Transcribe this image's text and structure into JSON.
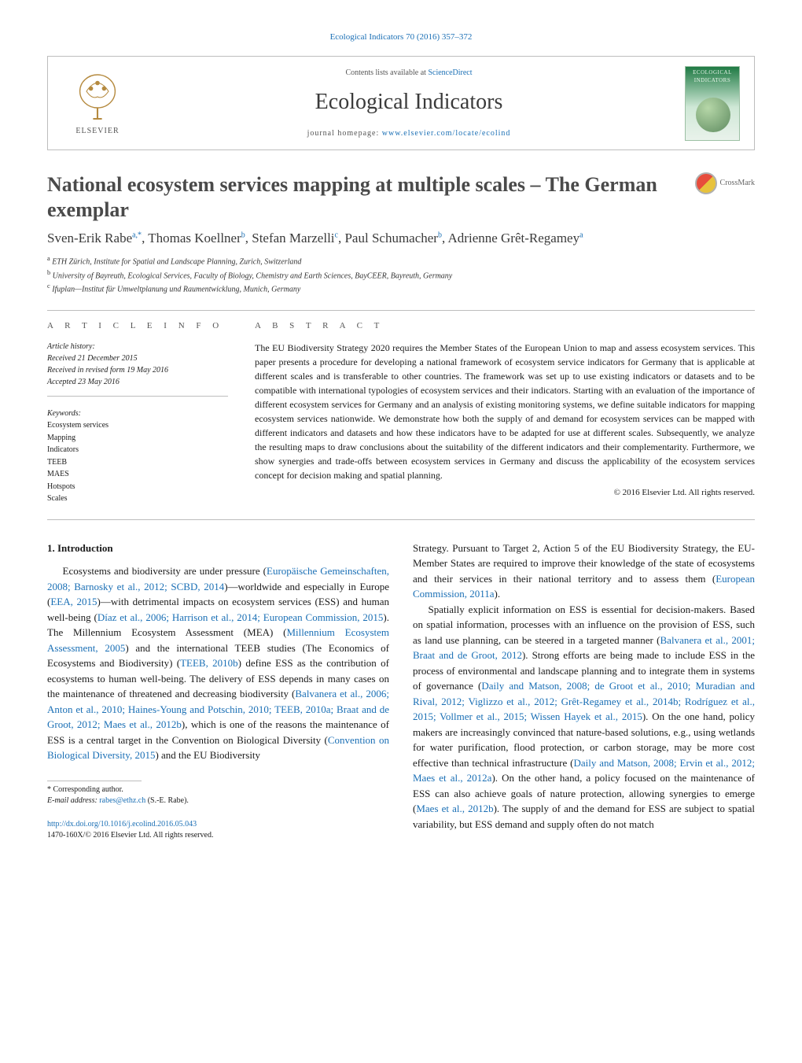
{
  "journal_ref": "Ecological Indicators 70 (2016) 357–372",
  "header": {
    "contents_prefix": "Contents lists available at ",
    "contents_link": "ScienceDirect",
    "journal_name": "Ecological Indicators",
    "homepage_prefix": "journal homepage: ",
    "homepage_link": "www.elsevier.com/locate/ecolind",
    "publisher_name": "ELSEVIER",
    "cover_label": "ECOLOGICAL INDICATORS"
  },
  "crossmark": "CrossMark",
  "title": "National ecosystem services mapping at multiple scales – The German exemplar",
  "authors_html": "Sven-Erik Rabe<sup>a,*</sup>, Thomas Koellner<sup>b</sup>, Stefan Marzelli<sup>c</sup>, Paul Schumacher<sup>b</sup>, Adrienne Grêt-Regamey<sup>a</sup>",
  "affiliations": [
    {
      "key": "a",
      "text": "ETH Zürich, Institute for Spatial and Landscape Planning, Zurich, Switzerland"
    },
    {
      "key": "b",
      "text": "University of Bayreuth, Ecological Services, Faculty of Biology, Chemistry and Earth Sciences, BayCEER, Bayreuth, Germany"
    },
    {
      "key": "c",
      "text": "Ifuplan—Institut für Umweltplanung und Raumentwicklung, Munich, Germany"
    }
  ],
  "article_info_heading": "A R T I C L E   I N F O",
  "abstract_heading": "A B S T R A C T",
  "history": {
    "label": "Article history:",
    "received": "Received 21 December 2015",
    "revised": "Received in revised form 19 May 2016",
    "accepted": "Accepted 23 May 2016"
  },
  "keywords": {
    "label": "Keywords:",
    "items": [
      "Ecosystem services",
      "Mapping",
      "Indicators",
      "TEEB",
      "MAES",
      "Hotspots",
      "Scales"
    ]
  },
  "abstract": "The EU Biodiversity Strategy 2020 requires the Member States of the European Union to map and assess ecosystem services. This paper presents a procedure for developing a national framework of ecosystem service indicators for Germany that is applicable at different scales and is transferable to other countries. The framework was set up to use existing indicators or datasets and to be compatible with international typologies of ecosystem services and their indicators. Starting with an evaluation of the importance of different ecosystem services for Germany and an analysis of existing monitoring systems, we define suitable indicators for mapping ecosystem services nationwide. We demonstrate how both the supply of and demand for ecosystem services can be mapped with different indicators and datasets and how these indicators have to be adapted for use at different scales. Subsequently, we analyze the resulting maps to draw conclusions about the suitability of the different indicators and their complementarity. Furthermore, we show synergies and trade-offs between ecosystem services in Germany and discuss the applicability of the ecosystem services concept for decision making and spatial planning.",
  "copyright": "© 2016 Elsevier Ltd. All rights reserved.",
  "intro_heading": "1.  Introduction",
  "col1": {
    "p1_parts": [
      "Ecosystems and biodiversity are under pressure (",
      "Europäische Gemeinschaften, 2008; Barnosky et al., 2012; SCBD, 2014",
      ")—worldwide and especially in Europe (",
      "EEA, 2015",
      ")—with detrimental impacts on ecosystem services (ESS) and human well-being (",
      "Díaz et al., 2006; Harrison et al., 2014; European Commission, 2015",
      "). The Millennium Ecosystem Assessment (MEA) (",
      "Millennium Ecosystem Assessment, 2005",
      ") and the international TEEB studies (The Economics of Ecosystems and Biodiversity) (",
      "TEEB, 2010b",
      ") define ESS as the contribution of ecosystems to human well-being. The delivery of ESS depends in many cases on the maintenance of threatened and decreasing biodiversity (",
      "Balvanera et al., 2006; Anton et al., 2010; Haines-Young and Potschin, 2010; TEEB, 2010a; Braat and de Groot, 2012; Maes et al., 2012b",
      "), which is one of the reasons the maintenance of ESS is a central target in the Convention on Biological Diversity (",
      "Convention on Biological Diversity, 2015",
      ") and the EU Biodiversity"
    ]
  },
  "col2": {
    "p1_parts": [
      "Strategy. Pursuant to Target 2, Action 5 of the EU Biodiversity Strategy, the EU-Member States are required to improve their knowledge of the state of ecosystems and their services in their national territory and to assess them (",
      "European Commission, 2011a",
      ")."
    ],
    "p2_parts": [
      "Spatially explicit information on ESS is essential for decision-makers. Based on spatial information, processes with an influence on the provision of ESS, such as land use planning, can be steered in a targeted manner (",
      "Balvanera et al., 2001; Braat and de Groot, 2012",
      "). Strong efforts are being made to include ESS in the process of environmental and landscape planning and to integrate them in systems of governance (",
      "Daily and Matson, 2008; de Groot et al., 2010; Muradian and Rival, 2012; Viglizzo et al., 2012; Grêt-Regamey et al., 2014b; Rodríguez et al., 2015; Vollmer et al., 2015; Wissen Hayek et al., 2015",
      "). On the one hand, policy makers are increasingly convinced that nature-based solutions, e.g., using wetlands for water purification, flood protection, or carbon storage, may be more cost effective than technical infrastructure (",
      "Daily and Matson, 2008; Ervin et al., 2012; Maes et al., 2012a",
      "). On the other hand, a policy focused on the maintenance of ESS can also achieve goals of nature protection, allowing synergies to emerge (",
      "Maes et al., 2012b",
      "). The supply of and the demand for ESS are subject to spatial variability, but ESS demand and supply often do not match"
    ]
  },
  "footnote": {
    "star": "* Corresponding author.",
    "email_label": "E-mail address: ",
    "email": "rabes@ethz.ch",
    "email_suffix": " (S.-E. Rabe)."
  },
  "doi": {
    "link": "http://dx.doi.org/10.1016/j.ecolind.2016.05.043",
    "issn_line": "1470-160X/© 2016 Elsevier Ltd. All rights reserved."
  },
  "colors": {
    "link": "#1a6fb5",
    "text": "#1a1a1a",
    "heading_gray": "#4a4a4a",
    "rule": "#bdbdbd"
  }
}
